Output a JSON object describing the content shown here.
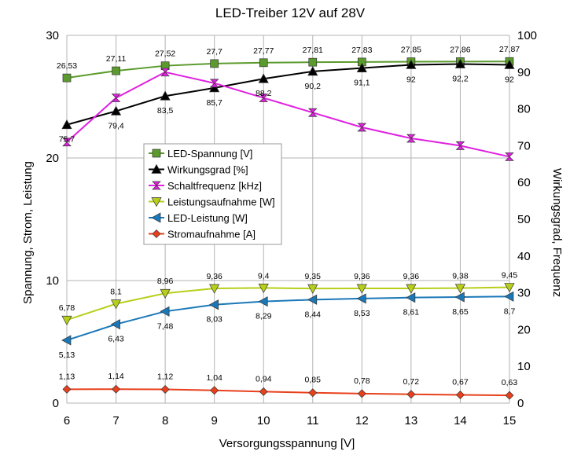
{
  "chart_data": {
    "type": "line",
    "title": "LED-Treiber 12V auf 28V",
    "xlabel": "Versorgungsspannung [V]",
    "ylabel_left": "Spannung, Strom, Leistung",
    "ylabel_right": "Wirkungsgrad, Frequenz",
    "x": [
      6,
      7,
      8,
      9,
      10,
      11,
      12,
      13,
      14,
      15
    ],
    "xlim": [
      6,
      15
    ],
    "ylim_left": [
      0,
      30
    ],
    "ylim_right": [
      0,
      100
    ],
    "yticks_left": [
      0,
      10,
      20,
      30
    ],
    "yticks_right": [
      0,
      10,
      20,
      30,
      40,
      50,
      60,
      70,
      80,
      90,
      100
    ],
    "grid": true,
    "legend_position": "center-left",
    "series": [
      {
        "name": "LED-Spannung [V]",
        "axis": "left",
        "color": "#5b9b2d",
        "marker": "square",
        "values": [
          26.53,
          27.11,
          27.52,
          27.7,
          27.77,
          27.81,
          27.83,
          27.85,
          27.86,
          27.87
        ],
        "labels": [
          "26,53",
          "27,11",
          "27,52",
          "27,7",
          "27,77",
          "27,81",
          "27,83",
          "27,85",
          "27,86",
          "27,87"
        ]
      },
      {
        "name": "Wirkungsgrad [%]",
        "axis": "right",
        "color": "#000000",
        "marker": "triangle-up",
        "values": [
          75.7,
          79.4,
          83.5,
          85.7,
          88.2,
          90.2,
          91.1,
          92,
          92.2,
          92
        ],
        "labels": [
          "75,7",
          "79,4",
          "83,5",
          "85,7",
          "88,2",
          "90,2",
          "91,1",
          "92",
          "92,2",
          "92"
        ]
      },
      {
        "name": "Schaltfrequenz [kHz]",
        "axis": "right",
        "color": "#e020e0",
        "marker": "bowtie",
        "values": [
          71,
          83,
          90,
          87,
          83,
          79,
          75,
          72,
          70,
          67
        ]
      },
      {
        "name": "Leistungsaufnahme [W]",
        "axis": "left",
        "color": "#b7cf1a",
        "marker": "triangle-down",
        "values": [
          6.78,
          8.1,
          8.96,
          9.36,
          9.4,
          9.35,
          9.36,
          9.36,
          9.38,
          9.45
        ],
        "labels": [
          "6,78",
          "8,1",
          "8,96",
          "9,36",
          "9,4",
          "9,35",
          "9,36",
          "9,36",
          "9,38",
          "9,45"
        ]
      },
      {
        "name": "LED-Leistung [W]",
        "axis": "left",
        "color": "#1b78b8",
        "marker": "triangle-left",
        "values": [
          5.13,
          6.43,
          7.48,
          8.03,
          8.29,
          8.44,
          8.53,
          8.61,
          8.65,
          8.7
        ],
        "labels": [
          "5,13",
          "6,43",
          "7,48",
          "8,03",
          "8,29",
          "8,44",
          "8,53",
          "8,61",
          "8,65",
          "8,7"
        ]
      },
      {
        "name": "Stromaufnahme [A]",
        "axis": "left",
        "color": "#e8401c",
        "marker": "diamond",
        "values": [
          1.13,
          1.14,
          1.12,
          1.04,
          0.94,
          0.85,
          0.78,
          0.72,
          0.67,
          0.63
        ],
        "labels": [
          "1,13",
          "1,14",
          "1,12",
          "1,04",
          "0,94",
          "0,85",
          "0,78",
          "0,72",
          "0,67",
          "0,63"
        ],
        "plot_axis": "right"
      }
    ]
  }
}
